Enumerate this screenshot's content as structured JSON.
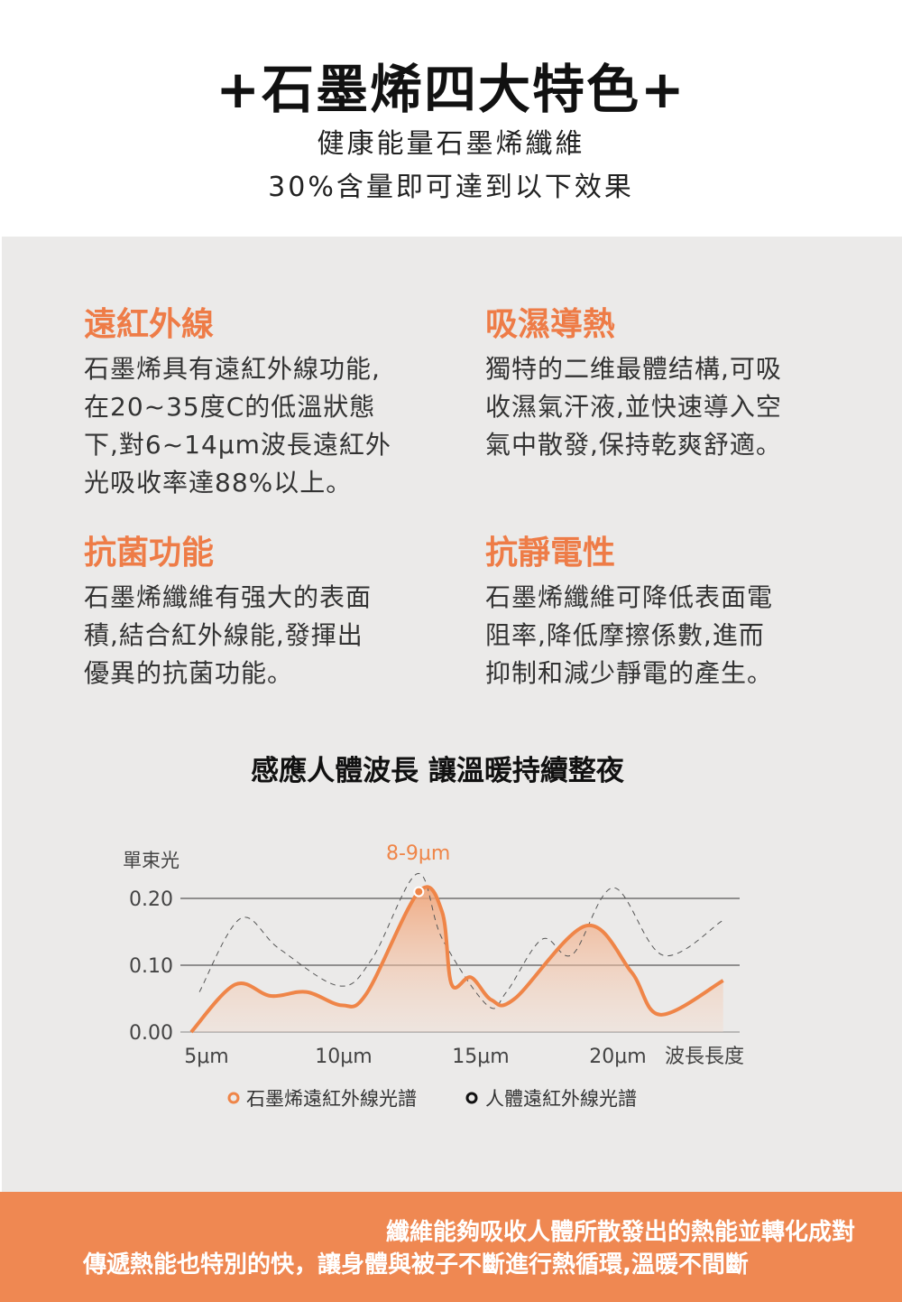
{
  "header": {
    "title": "+石墨烯四大特色+",
    "sub1": "健康能量石墨烯纖維",
    "sub2": "30%含量即可達到以下效果"
  },
  "features": [
    {
      "title": "遠紅外線",
      "lines": [
        "石墨烯具有遠紅外線功能,",
        "在20~35度C的低溫狀態",
        "下,對6~14μm波長遠紅外",
        "光吸收率達88%以上。"
      ]
    },
    {
      "title": "吸濕導熱",
      "lines": [
        "獨特的二维最體结構,可吸",
        "收濕氣汗液,並快速導入空",
        "氣中散發,保持乾爽舒適。"
      ]
    },
    {
      "title": "抗菌功能",
      "lines": [
        "石墨烯纖維有强大的表面",
        "積,結合紅外線能,發揮出",
        "優異的抗菌功能。"
      ]
    },
    {
      "title": "抗靜電性",
      "lines": [
        "石墨烯纖維可降低表面電",
        "阻率,降低摩擦係數,進而",
        "抑制和減少靜電的產生。"
      ]
    }
  ],
  "chart_title": "感應人體波長 讓溫暖持續整夜",
  "chart_data": {
    "type": "area",
    "ylabel": "單束光",
    "xlabel": "波長長度",
    "yticks": [
      "0.00",
      "0.10",
      "0.20"
    ],
    "xticks": [
      "5μm",
      "10μm",
      "15μm",
      "20μm"
    ],
    "ylim": [
      0,
      0.2
    ],
    "grid": true,
    "annotation": "8-9μm",
    "legend_position": "bottom",
    "series": [
      {
        "name": "石墨烯遠紅外線光譜",
        "color": "#ef8548",
        "style": "solid-filled",
        "x": [
          4.9,
          6.5,
          7.8,
          9.1,
          10.4,
          11.3,
          13.2,
          14.05,
          14.4,
          15.1,
          15.85,
          16.7,
          19.3,
          20.95,
          22.0,
          24.3
        ],
        "y": [
          0,
          0.071,
          0.054,
          0.06,
          0.04,
          0.058,
          0.21,
          0.18,
          0.071,
          0.082,
          0.048,
          0.05,
          0.159,
          0.09,
          0.026,
          0.077
        ]
      },
      {
        "name": "人體遠紅外線光譜",
        "color": "#555555",
        "style": "dashed",
        "x": [
          5.2,
          6.7,
          8.1,
          10.3,
          11.5,
          13.15,
          14.05,
          15.7,
          16.4,
          17.7,
          18.8,
          20.3,
          22.1,
          24.25
        ],
        "y": [
          0.06,
          0.17,
          0.125,
          0.069,
          0.11,
          0.237,
          0.14,
          0.04,
          0.06,
          0.139,
          0.116,
          0.216,
          0.115,
          0.166
        ]
      }
    ]
  },
  "footer": {
    "line1": "纖維能夠吸收人體所散發出的熱能並轉化成對",
    "line2": "傳遞熱能也特別的快，讓身體與被子不斷進行熱循環,溫暖不間斷"
  },
  "colors": {
    "accent": "#ee7c47",
    "panel": "#ebeae9",
    "footer": "#ef8852"
  }
}
